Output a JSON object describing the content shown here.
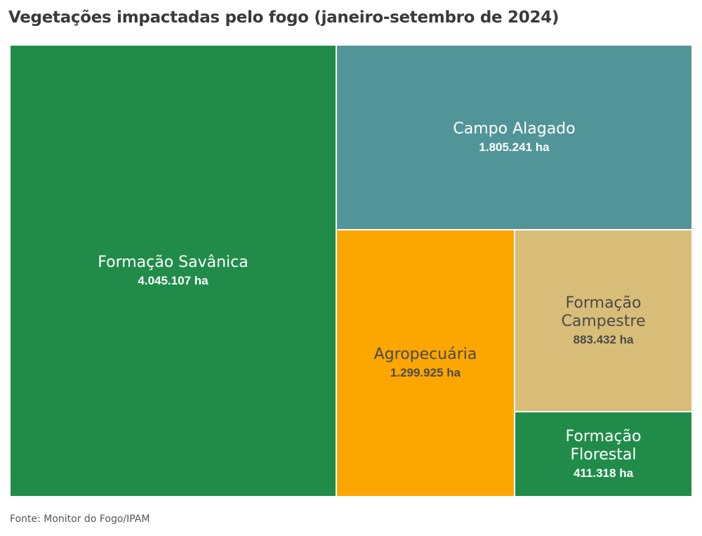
{
  "title": "Vegetações impactadas pelo fogo (janeiro-setembro de 2024)",
  "source": "Fonte: Monitor do Fogo/IPAM",
  "chart_data": {
    "type": "treemap",
    "title": "Vegetações impactadas pelo fogo (janeiro-setembro de 2024)",
    "unit": "ha",
    "items": [
      {
        "name": "Formação Savânica",
        "value": 4045107,
        "label": "4.045.107 ha",
        "color": "#218c4a",
        "text_color": "#ffffff"
      },
      {
        "name": "Campo Alagado",
        "value": 1805241,
        "label": "1.805.241 ha",
        "color": "#529598",
        "text_color": "#ffffff"
      },
      {
        "name": "Agropecuária",
        "value": 1299925,
        "label": "1.299.925 ha",
        "color": "#fca600",
        "text_color": "#4a4a4a"
      },
      {
        "name": "Formação Campestre",
        "value": 883432,
        "label": "883.432 ha",
        "color": "#d8bd78",
        "text_color": "#4a4a4a"
      },
      {
        "name": "Formação Florestal",
        "value": 411318,
        "label": "411.318 ha",
        "color": "#218c4a",
        "text_color": "#ffffff"
      }
    ]
  }
}
